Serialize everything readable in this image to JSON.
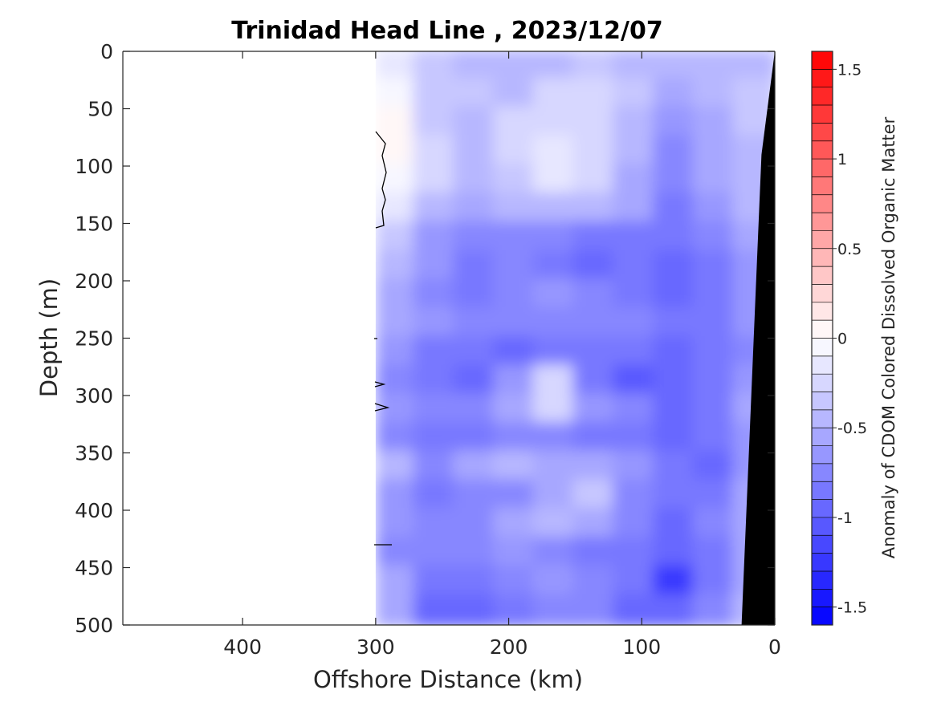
{
  "chart_data": {
    "type": "heatmap",
    "title": "Trinidad Head Line , 2023/12/07",
    "xlabel": "Offshore Distance (km)",
    "ylabel": "Depth (m)",
    "xlim": [
      490,
      0
    ],
    "ylim": [
      0,
      500
    ],
    "x_reversed": true,
    "y_reversed": true,
    "xticks": [
      400,
      300,
      200,
      100,
      0
    ],
    "yticks": [
      0,
      50,
      100,
      150,
      200,
      250,
      300,
      350,
      400,
      450,
      500
    ],
    "data_extent_x": [
      0,
      300
    ],
    "colorbar": {
      "label": "Anomaly of CDOM Colored Dissolved Organic Matter",
      "range": [
        -1.6,
        1.6
      ],
      "ticks": [
        1.5,
        1,
        0.5,
        0,
        -0.5,
        -1,
        -1.5
      ],
      "tick_labels": [
        "1.5",
        "1",
        "0.5",
        "0",
        "-0.5",
        "-1",
        "-1.5"
      ],
      "levels": 32,
      "colormap": {
        "low": "#0000ff",
        "mid": "#ffffff",
        "high": "#ff0000"
      }
    },
    "depth_bins": [
      0,
      25,
      50,
      75,
      100,
      125,
      150,
      175,
      200,
      225,
      250,
      275,
      300,
      325,
      350,
      375,
      400,
      425,
      450,
      475,
      500
    ],
    "distance_bins": [
      300,
      270,
      240,
      210,
      180,
      150,
      120,
      90,
      60,
      30,
      0
    ],
    "values": [
      [
        -0.2,
        -0.4,
        -0.45,
        -0.5,
        -0.45,
        -0.4,
        -0.45,
        -0.5,
        -0.45,
        -0.45
      ],
      [
        -0.1,
        -0.35,
        -0.4,
        -0.45,
        -0.3,
        -0.3,
        -0.4,
        -0.55,
        -0.5,
        -0.4
      ],
      [
        0.0,
        -0.35,
        -0.45,
        -0.3,
        -0.25,
        -0.3,
        -0.45,
        -0.65,
        -0.6,
        -0.4
      ],
      [
        0.0,
        -0.3,
        -0.5,
        -0.3,
        -0.2,
        -0.25,
        -0.5,
        -0.75,
        -0.6,
        -0.45
      ],
      [
        -0.05,
        -0.3,
        -0.5,
        -0.35,
        -0.2,
        -0.3,
        -0.55,
        -0.8,
        -0.6,
        -0.45
      ],
      [
        -0.15,
        -0.45,
        -0.55,
        -0.5,
        -0.45,
        -0.5,
        -0.6,
        -0.85,
        -0.7,
        -0.5
      ],
      [
        -0.35,
        -0.65,
        -0.75,
        -0.8,
        -0.8,
        -0.85,
        -0.85,
        -0.9,
        -0.8,
        -0.6
      ],
      [
        -0.45,
        -0.7,
        -0.85,
        -0.8,
        -0.85,
        -0.95,
        -0.9,
        -1.0,
        -0.85,
        -0.65
      ],
      [
        -0.55,
        -0.75,
        -0.85,
        -0.75,
        -0.7,
        -0.8,
        -0.85,
        -1.0,
        -0.9,
        -0.7
      ],
      [
        -0.6,
        -0.7,
        -0.75,
        -0.8,
        -0.75,
        -0.75,
        -0.8,
        -0.9,
        -0.85,
        -0.7
      ],
      [
        -0.7,
        -0.9,
        -0.85,
        -0.95,
        -0.9,
        -0.85,
        -0.9,
        -0.95,
        -0.9,
        -0.75
      ],
      [
        -0.75,
        -0.85,
        -0.95,
        -0.7,
        -0.3,
        -0.85,
        -1.05,
        -1.0,
        -0.85,
        -0.7
      ],
      [
        -0.7,
        -0.8,
        -0.75,
        -0.6,
        -0.25,
        -0.7,
        -0.8,
        -0.95,
        -0.85,
        -0.6
      ],
      [
        -0.75,
        -0.85,
        -0.9,
        -0.8,
        -0.75,
        -0.85,
        -0.9,
        -0.95,
        -0.9,
        -0.7
      ],
      [
        -0.5,
        -0.8,
        -0.6,
        -0.45,
        -0.6,
        -0.55,
        -0.7,
        -0.85,
        -0.95,
        -0.65
      ],
      [
        -0.65,
        -0.85,
        -0.75,
        -0.8,
        -0.55,
        -0.4,
        -0.75,
        -0.9,
        -0.85,
        -0.6
      ],
      [
        -0.7,
        -0.8,
        -0.75,
        -0.55,
        -0.5,
        -0.6,
        -0.8,
        -0.95,
        -0.8,
        -0.55
      ],
      [
        -0.8,
        -0.75,
        -0.8,
        -0.7,
        -0.8,
        -0.85,
        -0.9,
        -1.0,
        -0.9,
        -0.6
      ],
      [
        -0.55,
        -0.9,
        -0.85,
        -0.75,
        -0.7,
        -0.8,
        -0.85,
        -1.25,
        -0.85,
        -0.55
      ],
      [
        -0.55,
        -0.95,
        -1.0,
        -0.85,
        -0.8,
        -0.75,
        -0.95,
        -1.0,
        -0.75,
        -0.5
      ]
    ],
    "bathymetry": {
      "color": "#000000",
      "points": [
        [
          0,
          0
        ],
        [
          10,
          90
        ],
        [
          25,
          500
        ],
        [
          0,
          500
        ]
      ]
    }
  }
}
